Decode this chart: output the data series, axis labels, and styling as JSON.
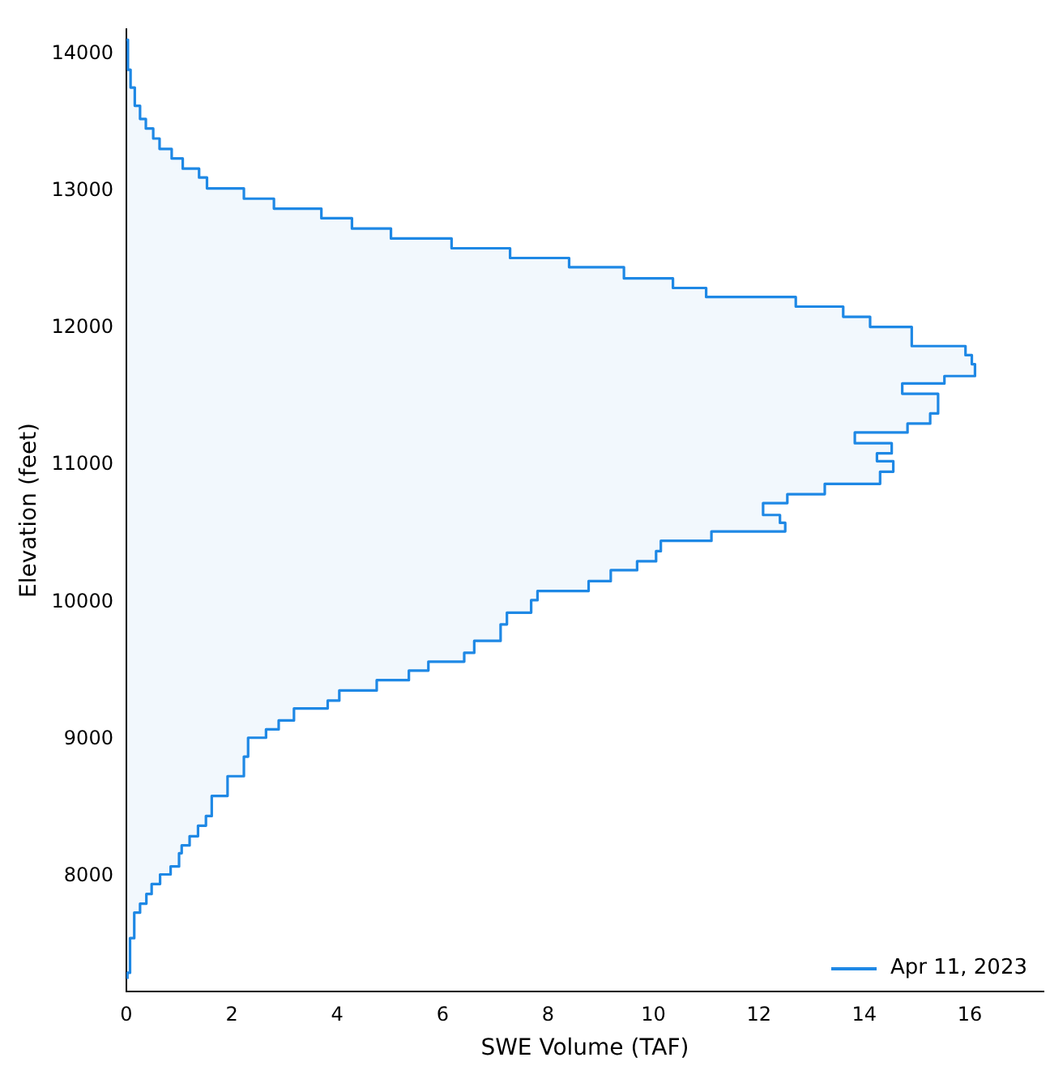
{
  "chart_data": {
    "type": "step",
    "orientation": "horizontal",
    "xlabel": "SWE Volume (TAF)",
    "ylabel": "Elevation (feet)",
    "xlim": [
      0,
      17.4
    ],
    "xticks": [
      0,
      2,
      4,
      6,
      8,
      10,
      12,
      14,
      16
    ],
    "ylim": [
      7160,
      14180
    ],
    "yticks": [
      8000,
      9000,
      10000,
      11000,
      12000,
      13000,
      14000
    ],
    "x": [
      7250,
      7294,
      7547,
      7733,
      7799,
      7869,
      7942,
      8012,
      8070,
      8167,
      8224,
      8291,
      8368,
      8438,
      8585,
      8729,
      8872,
      9010,
      9071,
      9136,
      9224,
      9281,
      9355,
      9430,
      9500,
      9565,
      9630,
      9717,
      9837,
      9923,
      10014,
      10081,
      10153,
      10233,
      10298,
      10372,
      10447,
      10516,
      10579,
      10636,
      10723,
      10788,
      10863,
      10952,
      11029,
      11086,
      11160,
      11238,
      11303,
      11377,
      11521,
      11596,
      11650,
      11737,
      11803,
      11869,
      12009,
      12083,
      12157,
      12227,
      12293,
      12363,
      12445,
      12512,
      12583,
      12654,
      12727,
      12802,
      12872,
      12945,
      13020,
      13099,
      13164,
      13238,
      13308,
      13384,
      13457,
      13527,
      13623,
      13756,
      13886,
      14105
    ],
    "series": [
      {
        "name": "Apr 11, 2023",
        "color": "#1e88e5",
        "values": [
          0.02,
          0.07,
          0.15,
          0.26,
          0.38,
          0.48,
          0.64,
          0.84,
          1.0,
          1.05,
          1.2,
          1.36,
          1.51,
          1.62,
          1.92,
          2.23,
          2.31,
          2.65,
          2.89,
          3.18,
          3.82,
          4.04,
          4.75,
          5.36,
          5.73,
          6.41,
          6.6,
          7.1,
          7.22,
          7.68,
          7.8,
          8.77,
          9.19,
          9.69,
          10.05,
          10.14,
          11.1,
          12.5,
          12.4,
          12.08,
          12.54,
          13.25,
          14.3,
          14.55,
          14.24,
          14.52,
          13.82,
          14.82,
          15.25,
          15.4,
          14.72,
          15.52,
          16.1,
          16.04,
          15.92,
          14.9,
          14.11,
          13.6,
          12.7,
          11.0,
          10.37,
          9.44,
          8.4,
          7.28,
          6.17,
          5.02,
          4.28,
          3.7,
          2.8,
          2.23,
          1.53,
          1.38,
          1.07,
          0.86,
          0.63,
          0.51,
          0.37,
          0.26,
          0.16,
          0.08,
          0.03,
          0
        ]
      }
    ],
    "grid": false,
    "legend": "bottom right"
  }
}
